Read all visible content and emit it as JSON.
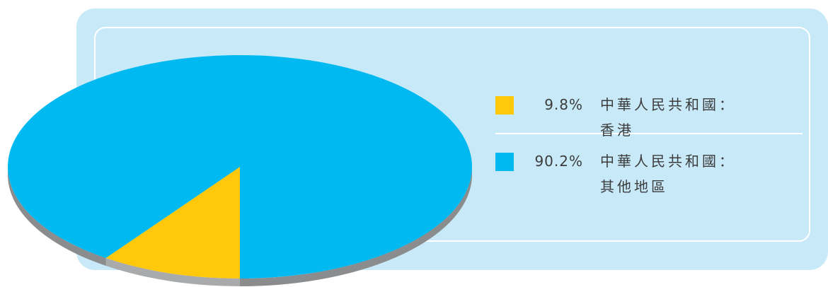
{
  "chart_data": {
    "type": "pie",
    "slices": [
      {
        "value": 9.8,
        "label_pct": "9.8%",
        "label": "中華人民共和國：\n香港",
        "color": "#ffc80a"
      },
      {
        "value": 90.2,
        "label_pct": "90.2%",
        "label": "中華人民共和國：\n其他地區",
        "color": "#00b9f0"
      }
    ],
    "legend_position": "right",
    "style": "3d-tilted"
  },
  "colors": {
    "panel_bg": "#c8e9f8",
    "side_dark": "#8a8c8e",
    "side_light": "#a8aaac"
  }
}
